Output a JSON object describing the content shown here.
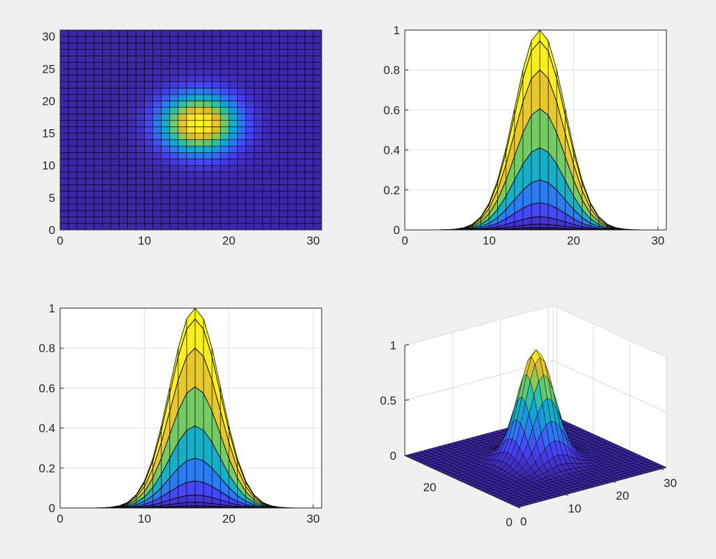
{
  "figure": {
    "background": "#f0f0f0"
  },
  "colormap": [
    "#3e26a8",
    "#4743f8",
    "#2a7df0",
    "#0ea6d6",
    "#2ec3a4",
    "#80cb58",
    "#d8ba30",
    "#fbdc2c",
    "#f9fb15"
  ],
  "chart_data": [
    {
      "type": "heatmap",
      "view": "top",
      "grid": {
        "rows": 31,
        "cols": 31
      },
      "surface": {
        "function": "gaussian",
        "center": [
          16,
          16
        ],
        "sigma": 3,
        "peak": 1
      },
      "xlim": [
        0,
        31
      ],
      "ylim": [
        0,
        31
      ],
      "xticks": [
        "0",
        "10",
        "20",
        "30"
      ],
      "yticks": [
        "0",
        "5",
        "10",
        "15",
        "20",
        "25",
        "30"
      ],
      "xlabel": "",
      "ylabel": "",
      "title": ""
    },
    {
      "type": "area",
      "view": "side-x",
      "surface": {
        "function": "gaussian",
        "center": [
          16,
          16
        ],
        "sigma": 3,
        "peak": 1
      },
      "xlim": [
        0,
        31
      ],
      "ylim": [
        0,
        1
      ],
      "xticks": [
        "0",
        "10",
        "20",
        "30"
      ],
      "yticks": [
        "0",
        "0.2",
        "0.4",
        "0.6",
        "0.8",
        "1"
      ],
      "grid": true,
      "xlabel": "",
      "ylabel": "",
      "title": ""
    },
    {
      "type": "area",
      "view": "side-y",
      "surface": {
        "function": "gaussian",
        "center": [
          16,
          16
        ],
        "sigma": 3,
        "peak": 1
      },
      "xlim": [
        0,
        31
      ],
      "ylim": [
        0,
        1
      ],
      "xticks": [
        "0",
        "10",
        "20",
        "30"
      ],
      "yticks": [
        "0",
        "0.2",
        "0.4",
        "0.6",
        "0.8",
        "1"
      ],
      "grid": true,
      "xlabel": "",
      "ylabel": "",
      "title": ""
    },
    {
      "type": "surface3d",
      "view": "3d",
      "surface": {
        "function": "gaussian",
        "center": [
          16,
          16
        ],
        "sigma": 3,
        "peak": 1
      },
      "xlim": [
        0,
        31
      ],
      "ylim": [
        0,
        31
      ],
      "zlim": [
        0,
        1
      ],
      "xticks": [
        "0",
        "10",
        "20",
        "30"
      ],
      "yticks": [
        "0",
        "20"
      ],
      "zticks": [
        "0",
        "0.5",
        "1"
      ],
      "grid": true,
      "xlabel": "",
      "ylabel": "",
      "zlabel": "",
      "title": ""
    }
  ]
}
